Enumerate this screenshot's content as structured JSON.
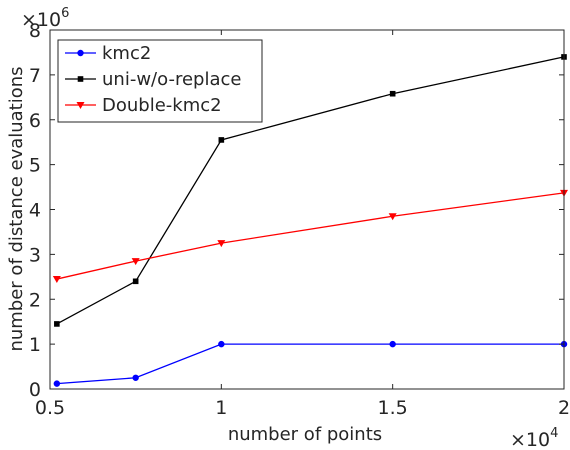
{
  "chart_data": {
    "type": "line",
    "title": "",
    "xlabel": "number of points",
    "ylabel": "number of distance evaluations",
    "x_multiplier": {
      "base": "×10",
      "exponent": "4"
    },
    "y_multiplier": {
      "base": "×10",
      "exponent": "6"
    },
    "x": [
      0.52,
      0.75,
      1.0,
      1.5,
      2.0
    ],
    "xlim": [
      0.5,
      2.0
    ],
    "ylim": [
      0,
      8
    ],
    "xticks": [
      0.5,
      1.0,
      1.5,
      2.0
    ],
    "xtick_labels": [
      "0.5",
      "1",
      "1.5",
      "2"
    ],
    "yticks": [
      0,
      1,
      2,
      3,
      4,
      5,
      6,
      7,
      8
    ],
    "ytick_labels": [
      "0",
      "1",
      "2",
      "3",
      "4",
      "5",
      "6",
      "7",
      "8"
    ],
    "grid": false,
    "legend_position": "top-left",
    "series": [
      {
        "name": "kmc2",
        "color": "#0000ff",
        "marker": "circle",
        "values": [
          0.12,
          0.25,
          1.0,
          1.0,
          1.0
        ]
      },
      {
        "name": "uni-w/o-replace",
        "color": "#000000",
        "marker": "square",
        "values": [
          1.45,
          2.4,
          5.55,
          6.58,
          7.4
        ]
      },
      {
        "name": "Double-kmc2",
        "color": "#ff0000",
        "marker": "triangle-down",
        "values": [
          2.45,
          2.85,
          3.25,
          3.85,
          4.37
        ]
      }
    ]
  }
}
